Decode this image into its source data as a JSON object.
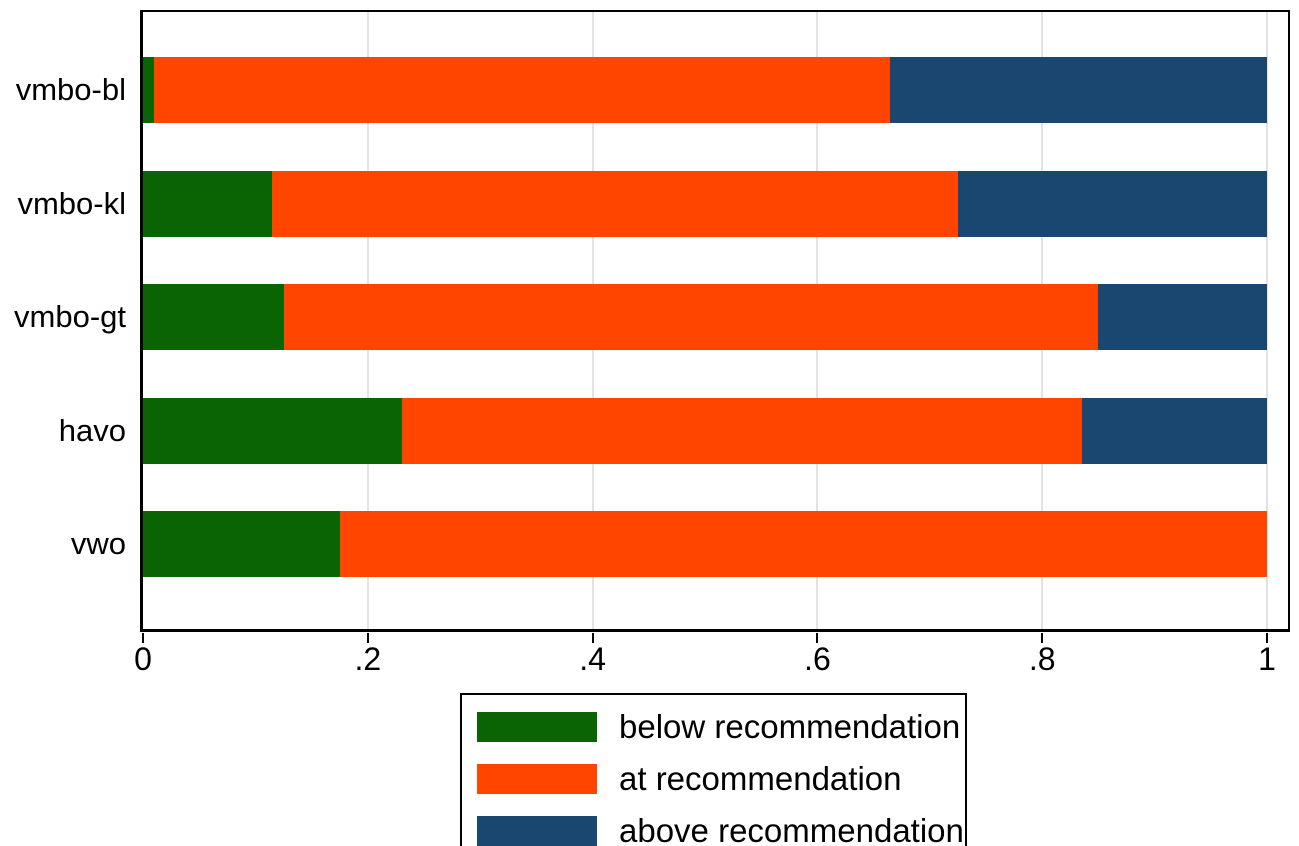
{
  "colors": {
    "below": "#0a6403",
    "at": "#ff4500",
    "above": "#1a476f",
    "gridline": "#e2e2e2",
    "axis": "#000000",
    "background": "#ffffff"
  },
  "chart_data": {
    "type": "bar",
    "orientation": "horizontal",
    "stacked": true,
    "title": "",
    "xlabel": "",
    "ylabel": "",
    "categories": [
      "vmbo-bl",
      "vmbo-kl",
      "vmbo-gt",
      "havo",
      "vwo"
    ],
    "series": [
      {
        "name": "below recommendation",
        "color": "#0a6403",
        "values": [
          0.01,
          0.115,
          0.125,
          0.23,
          0.175
        ]
      },
      {
        "name": "at recommendation",
        "color": "#ff4500",
        "values": [
          0.655,
          0.61,
          0.725,
          0.605,
          0.825
        ]
      },
      {
        "name": "above recommendation",
        "color": "#1a476f",
        "values": [
          0.335,
          0.275,
          0.15,
          0.165,
          0.0
        ]
      }
    ],
    "xlim": [
      0,
      1
    ],
    "x_ticks": [
      {
        "label": "0",
        "value": 0
      },
      {
        "label": ".2",
        "value": 0.2
      },
      {
        "label": ".4",
        "value": 0.4
      },
      {
        "label": ".6",
        "value": 0.6
      },
      {
        "label": ".8",
        "value": 0.8
      },
      {
        "label": "1",
        "value": 1
      }
    ],
    "grid": true,
    "legend_position": "bottom-center"
  }
}
